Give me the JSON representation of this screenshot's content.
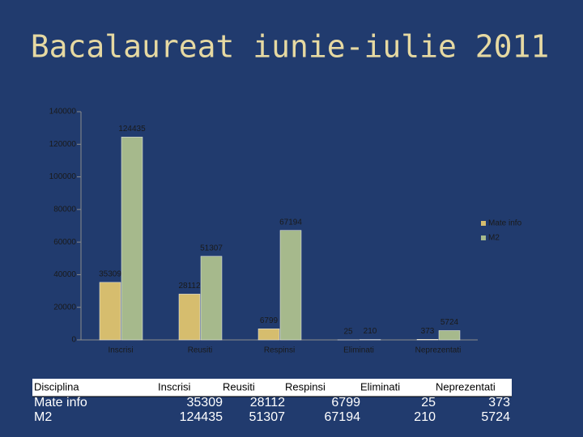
{
  "title": "Bacalaureat iunie-iulie 2011",
  "chart_data": {
    "type": "bar",
    "categories": [
      "Inscrisi",
      "Reusiti",
      "Respinsi",
      "Eliminati",
      "Neprezentati"
    ],
    "series": [
      {
        "name": "Mate info",
        "color": "#d6bd6e",
        "values": [
          35309,
          28112,
          6799,
          25,
          373
        ]
      },
      {
        "name": "M2",
        "color": "#a6b98c",
        "values": [
          124435,
          51307,
          67194,
          210,
          5724
        ]
      }
    ],
    "ylim": [
      0,
      140000
    ],
    "yticks": [
      0,
      20000,
      40000,
      60000,
      80000,
      100000,
      120000,
      140000
    ],
    "legend": "right"
  },
  "table": {
    "header": "Disciplina"
  }
}
